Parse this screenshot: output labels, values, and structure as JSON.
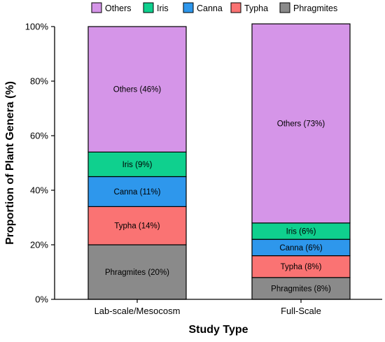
{
  "chart_data": {
    "type": "bar",
    "stacked": true,
    "categories": [
      "Lab-scale/Mesocosm",
      "Full-Scale"
    ],
    "series": [
      {
        "name": "Phragmites",
        "values": [
          20,
          8
        ],
        "labels": [
          "Phragmites (20%)",
          "Phragmites (8%)"
        ]
      },
      {
        "name": "Typha",
        "values": [
          14,
          8
        ],
        "labels": [
          "Typha (14%)",
          "Typha (8%)"
        ]
      },
      {
        "name": "Canna",
        "values": [
          11,
          6
        ],
        "labels": [
          "Canna (11%)",
          "Canna (6%)"
        ]
      },
      {
        "name": "Iris",
        "values": [
          9,
          6
        ],
        "labels": [
          "Iris (9%)",
          "Iris (6%)"
        ]
      },
      {
        "name": "Others",
        "values": [
          46,
          73
        ],
        "labels": [
          "Others (46%)",
          "Others (73%)"
        ]
      }
    ],
    "legend_order": [
      "Others",
      "Iris",
      "Canna",
      "Typha",
      "Phragmites"
    ],
    "xlabel": "Study Type",
    "ylabel": "Proportion of Plant Genera (%)",
    "ylim": [
      0,
      100
    ],
    "yticks": [
      "0%",
      "20%",
      "40%",
      "60%",
      "80%",
      "100%"
    ],
    "legend_position": "top",
    "grid": false
  },
  "colors": {
    "Others": "#d595e8",
    "Iris": "#0fd08e",
    "Canna": "#2e97ec",
    "Typha": "#fa7373",
    "Phragmites": "#8a8a8a",
    "outline": "#000000"
  }
}
